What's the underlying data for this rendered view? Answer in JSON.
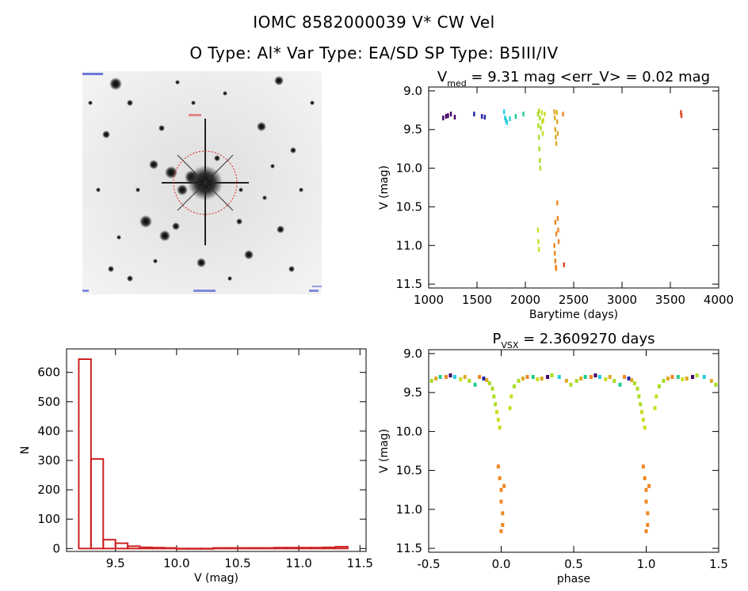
{
  "header": {
    "line1": "IOMC 8582000039    V* CW Vel",
    "line2": "O Type: Al*   Var Type: EA/SD   SP Type: B5III/IV"
  },
  "colors": {
    "hist": "#cc2222",
    "palette": [
      "#440066",
      "#2222aa",
      "#22ccdd",
      "#22cc88",
      "#aadd22",
      "#ccdd22",
      "#ddaa22",
      "#ee8822",
      "#dd4422"
    ]
  },
  "chart_data": [
    {
      "type": "scatter",
      "panel": "lightcurve",
      "title_parts": [
        "V",
        "med",
        " = 9.31 mag <err_V> = 0.02 mag"
      ],
      "xlabel": "Barytime (days)",
      "ylabel": "V (mag)",
      "xlim": [
        1000,
        4000
      ],
      "ylim": [
        11.55,
        8.95
      ],
      "xticks": [
        1000,
        1500,
        2000,
        2500,
        3000,
        3500,
        4000
      ],
      "yticks": [
        9.0,
        9.5,
        10.0,
        10.5,
        11.0,
        11.5
      ],
      "points": [
        [
          1150,
          9.35,
          0
        ],
        [
          1180,
          9.33,
          0
        ],
        [
          1200,
          9.32,
          0
        ],
        [
          1230,
          9.3,
          0
        ],
        [
          1270,
          9.34,
          0
        ],
        [
          1470,
          9.3,
          1
        ],
        [
          1550,
          9.33,
          1
        ],
        [
          1580,
          9.34,
          1
        ],
        [
          1780,
          9.27,
          2
        ],
        [
          1790,
          9.35,
          2
        ],
        [
          1800,
          9.38,
          2
        ],
        [
          1810,
          9.41,
          2
        ],
        [
          1840,
          9.36,
          2
        ],
        [
          1900,
          9.33,
          3
        ],
        [
          1980,
          9.3,
          3
        ],
        [
          2130,
          9.3,
          4
        ],
        [
          2135,
          9.45,
          4
        ],
        [
          2140,
          9.6,
          4
        ],
        [
          2145,
          9.75,
          4
        ],
        [
          2150,
          9.9,
          4
        ],
        [
          2155,
          10.0,
          4
        ],
        [
          2140,
          9.26,
          4
        ],
        [
          2150,
          9.35,
          4
        ],
        [
          2160,
          9.48,
          4
        ],
        [
          2170,
          9.28,
          5
        ],
        [
          2175,
          9.4,
          5
        ],
        [
          2180,
          9.55,
          5
        ],
        [
          2185,
          9.38,
          5
        ],
        [
          2200,
          9.3,
          5
        ],
        [
          2130,
          10.8,
          5
        ],
        [
          2135,
          10.95,
          5
        ],
        [
          2140,
          11.05,
          5
        ],
        [
          2300,
          9.27,
          6
        ],
        [
          2305,
          9.35,
          6
        ],
        [
          2310,
          9.5,
          6
        ],
        [
          2315,
          9.6,
          6
        ],
        [
          2320,
          9.68,
          6
        ],
        [
          2325,
          9.28,
          6
        ],
        [
          2330,
          9.4,
          6
        ],
        [
          2335,
          9.55,
          6
        ],
        [
          2300,
          11.0,
          7
        ],
        [
          2305,
          11.1,
          7
        ],
        [
          2310,
          11.2,
          7
        ],
        [
          2315,
          11.28,
          7
        ],
        [
          2320,
          11.3,
          7
        ],
        [
          2330,
          10.45,
          7
        ],
        [
          2335,
          10.65,
          7
        ],
        [
          2340,
          10.8,
          7
        ],
        [
          2345,
          10.95,
          7
        ],
        [
          2310,
          10.7,
          7
        ],
        [
          2320,
          10.85,
          7
        ],
        [
          2390,
          9.3,
          7
        ],
        [
          2400,
          11.25,
          8
        ],
        [
          3610,
          9.28,
          8
        ],
        [
          3615,
          9.32,
          8
        ]
      ]
    },
    {
      "type": "bar",
      "panel": "histogram",
      "xlabel": "V (mag)",
      "ylabel": "N",
      "xlim": [
        9.1,
        11.55
      ],
      "ylim": [
        -10,
        680
      ],
      "xticks": [
        9.5,
        10.0,
        10.5,
        11.0,
        11.5
      ],
      "yticks": [
        0,
        100,
        200,
        300,
        400,
        500,
        600
      ],
      "bin_edges": [
        9.2,
        9.3,
        9.4,
        9.5,
        9.6,
        9.7,
        9.8,
        9.9,
        10.0,
        10.1,
        10.2,
        10.3,
        10.4,
        10.5,
        10.6,
        10.7,
        10.8,
        10.9,
        11.0,
        11.1,
        11.2,
        11.3,
        11.4
      ],
      "values": [
        645,
        305,
        30,
        18,
        8,
        4,
        3,
        2,
        0,
        0,
        0,
        2,
        2,
        2,
        2,
        2,
        3,
        3,
        3,
        3,
        4,
        6
      ]
    },
    {
      "type": "scatter",
      "panel": "phased",
      "title_parts": [
        "P",
        "VSX",
        " = 2.3609270 days"
      ],
      "xlabel": "phase",
      "ylabel": "V (mag)",
      "xlim": [
        -0.5,
        1.5
      ],
      "ylim": [
        11.55,
        8.95
      ],
      "xticks": [
        -0.5,
        0.0,
        0.5,
        1.0,
        1.5
      ],
      "yticks": [
        9.0,
        9.5,
        10.0,
        10.5,
        11.0,
        11.5
      ],
      "points": [
        [
          -0.48,
          9.35,
          4
        ],
        [
          -0.45,
          9.32,
          6
        ],
        [
          -0.42,
          9.3,
          3
        ],
        [
          -0.38,
          9.3,
          7
        ],
        [
          -0.35,
          9.28,
          0
        ],
        [
          -0.32,
          9.3,
          2
        ],
        [
          -0.28,
          9.33,
          5
        ],
        [
          -0.25,
          9.3,
          6
        ],
        [
          -0.22,
          9.35,
          4
        ],
        [
          -0.18,
          9.4,
          3
        ],
        [
          -0.15,
          9.3,
          7
        ],
        [
          -0.12,
          9.32,
          1
        ],
        [
          -0.1,
          9.34,
          6
        ],
        [
          -0.08,
          9.38,
          4
        ],
        [
          -0.06,
          9.45,
          4
        ],
        [
          -0.05,
          9.55,
          4
        ],
        [
          -0.04,
          9.65,
          4
        ],
        [
          -0.03,
          9.75,
          5
        ],
        [
          -0.02,
          9.85,
          5
        ],
        [
          -0.01,
          9.95,
          5
        ],
        [
          -0.02,
          10.45,
          7
        ],
        [
          -0.01,
          10.6,
          7
        ],
        [
          0.0,
          10.75,
          7
        ],
        [
          0.0,
          10.9,
          7
        ],
        [
          0.01,
          11.05,
          7
        ],
        [
          0.01,
          11.2,
          7
        ],
        [
          0.0,
          11.28,
          7
        ],
        [
          0.02,
          10.7,
          7
        ],
        [
          0.06,
          9.7,
          5
        ],
        [
          0.07,
          9.55,
          5
        ],
        [
          0.09,
          9.42,
          4
        ],
        [
          0.12,
          9.35,
          4
        ],
        [
          0.15,
          9.32,
          6
        ],
        [
          0.18,
          9.3,
          7
        ],
        [
          0.22,
          9.3,
          3
        ],
        [
          0.25,
          9.33,
          5
        ],
        [
          0.28,
          9.32,
          6
        ],
        [
          0.32,
          9.3,
          0
        ],
        [
          0.35,
          9.28,
          4
        ],
        [
          0.4,
          9.3,
          2
        ],
        [
          0.45,
          9.35,
          6
        ],
        [
          0.48,
          9.4,
          4
        ],
        [
          0.52,
          9.35,
          4
        ],
        [
          0.55,
          9.32,
          6
        ],
        [
          0.58,
          9.3,
          3
        ],
        [
          0.62,
          9.3,
          7
        ],
        [
          0.65,
          9.28,
          0
        ],
        [
          0.68,
          9.3,
          2
        ],
        [
          0.72,
          9.33,
          5
        ],
        [
          0.75,
          9.3,
          6
        ],
        [
          0.78,
          9.35,
          4
        ],
        [
          0.82,
          9.4,
          3
        ],
        [
          0.85,
          9.3,
          7
        ],
        [
          0.88,
          9.32,
          1
        ],
        [
          0.9,
          9.34,
          6
        ],
        [
          0.92,
          9.38,
          4
        ],
        [
          0.94,
          9.45,
          4
        ],
        [
          0.95,
          9.55,
          4
        ],
        [
          0.96,
          9.65,
          4
        ],
        [
          0.97,
          9.75,
          5
        ],
        [
          0.98,
          9.85,
          5
        ],
        [
          0.99,
          9.95,
          5
        ],
        [
          0.98,
          10.45,
          7
        ],
        [
          0.99,
          10.6,
          7
        ],
        [
          1.0,
          10.75,
          7
        ],
        [
          1.0,
          10.9,
          7
        ],
        [
          1.01,
          11.05,
          7
        ],
        [
          1.01,
          11.2,
          7
        ],
        [
          1.0,
          11.28,
          7
        ],
        [
          1.02,
          10.7,
          7
        ],
        [
          1.06,
          9.7,
          5
        ],
        [
          1.07,
          9.55,
          5
        ],
        [
          1.09,
          9.42,
          4
        ],
        [
          1.12,
          9.35,
          4
        ],
        [
          1.15,
          9.32,
          6
        ],
        [
          1.18,
          9.3,
          7
        ],
        [
          1.22,
          9.3,
          3
        ],
        [
          1.25,
          9.33,
          5
        ],
        [
          1.28,
          9.32,
          6
        ],
        [
          1.32,
          9.3,
          0
        ],
        [
          1.35,
          9.28,
          4
        ],
        [
          1.4,
          9.3,
          2
        ],
        [
          1.45,
          9.35,
          6
        ],
        [
          1.48,
          9.4,
          4
        ]
      ]
    }
  ]
}
